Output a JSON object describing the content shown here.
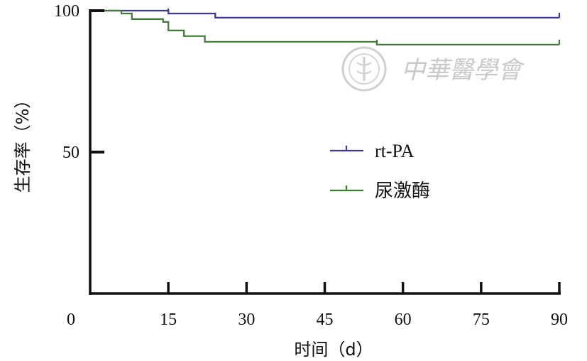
{
  "chart_data": {
    "type": "line",
    "step": true,
    "xlabel": "时间（d）",
    "ylabel": "生存率（%）",
    "xlim": [
      0,
      90
    ],
    "ylim": [
      0,
      100
    ],
    "xticks": [
      "0",
      "15",
      "30",
      "45",
      "60",
      "75",
      "90"
    ],
    "yticks": [
      "50",
      "100"
    ],
    "grid": false,
    "legend_position": "center-right",
    "series": [
      {
        "name": "rt-PA",
        "color": "#3f3a8c",
        "x": [
          0,
          15,
          15,
          24,
          24,
          90
        ],
        "y": [
          100,
          100,
          99,
          99,
          97.5,
          97.5
        ],
        "censor_x": [
          15,
          24,
          90
        ]
      },
      {
        "name": "尿激酶",
        "color": "#3e7a35",
        "x": [
          0,
          6,
          6,
          8,
          8,
          14,
          14,
          15,
          15,
          18,
          18,
          22,
          22,
          55,
          55,
          90
        ],
        "y": [
          100,
          100,
          99,
          99,
          97,
          97,
          96,
          96,
          93,
          93,
          91,
          91,
          89,
          89,
          88,
          88
        ],
        "censor_x": [
          55,
          90
        ]
      }
    ]
  },
  "watermark": {
    "text": "中華醫學會",
    "emblem": "medical-association-emblem-icon"
  }
}
